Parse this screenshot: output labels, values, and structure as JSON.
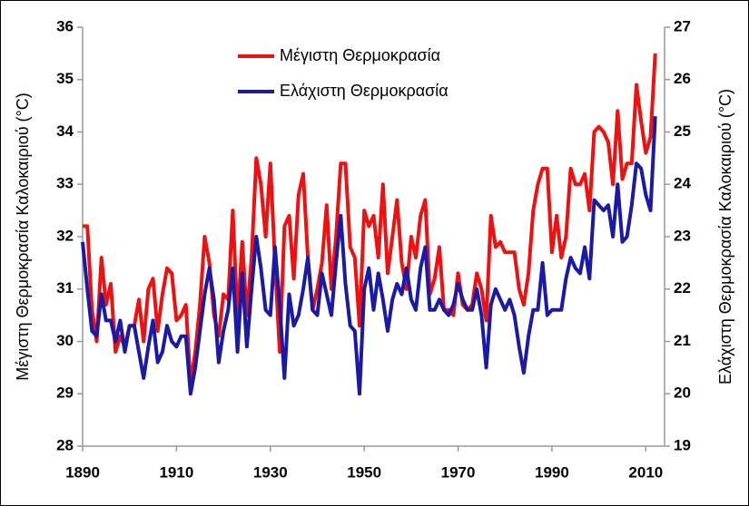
{
  "chart_data": {
    "type": "line",
    "x": [
      1890,
      1891,
      1892,
      1893,
      1894,
      1895,
      1896,
      1897,
      1898,
      1899,
      1900,
      1901,
      1902,
      1903,
      1904,
      1905,
      1906,
      1907,
      1908,
      1909,
      1910,
      1911,
      1912,
      1913,
      1914,
      1915,
      1916,
      1917,
      1918,
      1919,
      1920,
      1921,
      1922,
      1923,
      1924,
      1925,
      1926,
      1927,
      1928,
      1929,
      1930,
      1931,
      1932,
      1933,
      1934,
      1935,
      1936,
      1937,
      1938,
      1939,
      1940,
      1941,
      1942,
      1943,
      1944,
      1945,
      1946,
      1947,
      1948,
      1949,
      1950,
      1951,
      1952,
      1953,
      1954,
      1955,
      1956,
      1957,
      1958,
      1959,
      1960,
      1961,
      1962,
      1963,
      1964,
      1965,
      1966,
      1967,
      1968,
      1969,
      1970,
      1971,
      1972,
      1973,
      1974,
      1975,
      1976,
      1977,
      1978,
      1979,
      1980,
      1981,
      1982,
      1983,
      1984,
      1985,
      1986,
      1987,
      1988,
      1989,
      1990,
      1991,
      1992,
      1993,
      1994,
      1995,
      1996,
      1997,
      1998,
      1999,
      2000,
      2001,
      2002,
      2003,
      2004,
      2005,
      2006,
      2007,
      2008,
      2009,
      2010,
      2011,
      2012
    ],
    "series": [
      {
        "name": "Μέγιστη Θερμοκρασία",
        "color": "#ee1111",
        "axis": "y",
        "values": [
          32.2,
          32.2,
          30.6,
          30.0,
          31.6,
          30.7,
          31.1,
          29.8,
          30.1,
          29.9,
          30.3,
          30.3,
          30.8,
          30.0,
          31.0,
          31.2,
          30.2,
          30.9,
          31.4,
          31.3,
          30.4,
          30.5,
          30.7,
          29.2,
          29.8,
          30.7,
          32.0,
          31.5,
          30.5,
          30.1,
          30.9,
          30.8,
          32.5,
          30.4,
          31.9,
          30.5,
          31.6,
          33.5,
          33.0,
          32.0,
          33.4,
          31.5,
          29.8,
          32.2,
          32.4,
          31.2,
          32.8,
          33.2,
          31.6,
          30.6,
          31.0,
          31.5,
          32.6,
          31.0,
          32.0,
          33.4,
          33.4,
          31.8,
          31.6,
          30.3,
          32.5,
          32.2,
          32.4,
          31.6,
          33.0,
          31.3,
          32.0,
          32.7,
          31.5,
          31.0,
          32.0,
          31.6,
          32.4,
          32.7,
          30.9,
          31.2,
          31.8,
          30.6,
          30.6,
          30.5,
          31.3,
          30.7,
          30.6,
          30.7,
          31.3,
          31.0,
          30.4,
          32.4,
          31.8,
          31.9,
          31.7,
          31.7,
          31.7,
          31.0,
          30.7,
          31.3,
          32.5,
          33.0,
          33.3,
          33.3,
          31.7,
          32.4,
          31.6,
          32.0,
          33.3,
          33.0,
          33.0,
          33.2,
          32.5,
          34.0,
          34.1,
          34.0,
          33.8,
          33.0,
          34.4,
          33.1,
          33.4,
          33.4,
          34.9,
          34.2,
          33.6,
          33.9,
          35.5
        ]
      },
      {
        "name": "Ελάχιστη Θερμοκρασία",
        "color": "#1a1aa6",
        "axis": "y2",
        "values": [
          22.9,
          22.0,
          21.2,
          21.1,
          21.9,
          21.4,
          21.4,
          21.0,
          21.4,
          20.8,
          21.3,
          21.3,
          20.8,
          20.3,
          20.9,
          21.4,
          20.6,
          20.8,
          21.3,
          21.0,
          20.9,
          21.1,
          21.1,
          20.0,
          20.5,
          21.2,
          21.9,
          22.4,
          21.8,
          20.6,
          21.2,
          21.6,
          22.4,
          20.8,
          22.3,
          20.9,
          22.0,
          23.0,
          22.4,
          21.6,
          21.5,
          22.8,
          21.7,
          20.3,
          21.9,
          21.3,
          21.5,
          22.0,
          22.6,
          21.6,
          21.5,
          22.3,
          21.9,
          21.5,
          22.5,
          23.4,
          22.1,
          21.3,
          21.2,
          20.0,
          22.0,
          22.4,
          21.6,
          22.3,
          21.8,
          21.2,
          21.8,
          22.1,
          21.9,
          22.4,
          21.8,
          21.6,
          22.4,
          22.8,
          21.6,
          21.6,
          21.8,
          21.6,
          21.5,
          21.7,
          22.1,
          21.8,
          21.6,
          21.6,
          22.0,
          21.5,
          20.5,
          21.7,
          22.0,
          21.8,
          21.6,
          21.8,
          21.5,
          20.9,
          20.4,
          21.1,
          21.6,
          21.6,
          22.5,
          21.5,
          21.6,
          21.6,
          21.6,
          22.2,
          22.6,
          22.4,
          22.3,
          22.8,
          22.2,
          23.7,
          23.6,
          23.5,
          23.6,
          23.0,
          24.0,
          22.9,
          23.0,
          23.6,
          24.4,
          24.3,
          23.8,
          23.5,
          25.3
        ]
      }
    ],
    "y_label": "Μέγιστη Θερμοκρασία Καλοκαιριού (°C)",
    "y2_label": "Ελάχιστη  Θερμοκρασία Καλοκαιριού (°C)",
    "xlim": [
      1890,
      2014
    ],
    "xticks": [
      1890,
      1910,
      1930,
      1950,
      1970,
      1990,
      2010
    ],
    "ylim": [
      28,
      36
    ],
    "yticks": [
      28,
      29,
      30,
      31,
      32,
      33,
      34,
      35,
      36
    ],
    "y2lim": [
      19,
      27
    ],
    "y2ticks": [
      19,
      20,
      21,
      22,
      23,
      24,
      25,
      26,
      27
    ],
    "legend": "top"
  }
}
